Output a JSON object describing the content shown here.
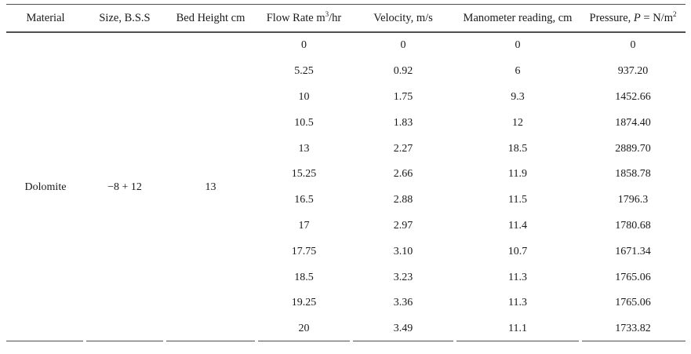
{
  "table": {
    "headers": {
      "material": "Material",
      "size": "Size, B.S.S",
      "bed_height": "Bed Height cm",
      "flow_prefix": "Flow Rate m",
      "flow_sup": "3",
      "flow_suffix": "/hr",
      "velocity": "Velocity, m/s",
      "manometer": "Manometer reading, cm",
      "pressure_prefix": "Pressure, ",
      "pressure_var": "P",
      "pressure_mid": " = N/m",
      "pressure_sup": "2"
    },
    "material_value": "Dolomite",
    "size_value": "−8 + 12",
    "bed_height_value": "13",
    "rows": [
      [
        "0",
        "0",
        "0",
        "0"
      ],
      [
        "5.25",
        "0.92",
        "6",
        "937.20"
      ],
      [
        "10",
        "1.75",
        "9.3",
        "1452.66"
      ],
      [
        "10.5",
        "1.83",
        "12",
        "1874.40"
      ],
      [
        "13",
        "2.27",
        "18.5",
        "2889.70"
      ],
      [
        "15.25",
        "2.66",
        "11.9",
        "1858.78"
      ],
      [
        "16.5",
        "2.88",
        "11.5",
        "1796.3"
      ],
      [
        "17",
        "2.97",
        "11.4",
        "1780.68"
      ],
      [
        "17.75",
        "3.10",
        "10.7",
        "1671.34"
      ],
      [
        "18.5",
        "3.23",
        "11.3",
        "1765.06"
      ],
      [
        "19.25",
        "3.36",
        "11.3",
        "1765.06"
      ],
      [
        "20",
        "3.49",
        "11.1",
        "1733.82"
      ]
    ],
    "colors": {
      "rule": "#4f4f4f",
      "text": "#1a1a1a",
      "background": "#ffffff"
    }
  }
}
